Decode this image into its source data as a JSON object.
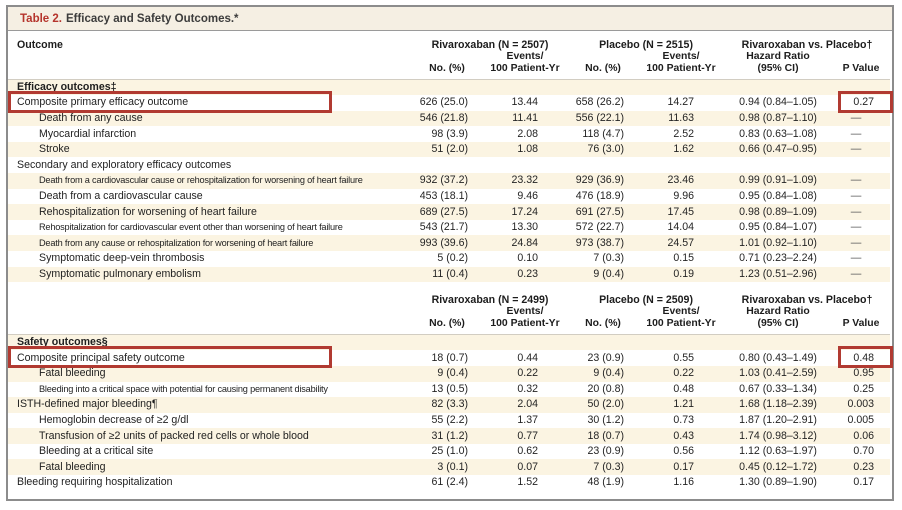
{
  "title": {
    "label": "Table 2.",
    "text": "Efficacy and Safety Outcomes.*"
  },
  "columns": {
    "outcome": "Outcome",
    "no_pct": "No. (%)",
    "events_line1": "Events/",
    "events_line2": "100 Patient-Yr",
    "hr_line1": "Hazard Ratio",
    "hr_line2": "(95% CI)",
    "p": "P Value"
  },
  "colors": {
    "accent_red": "#b13a31",
    "stripe_beige": "#fbf4e2",
    "title_bg": "#f5efe3"
  },
  "annotation_boxes": [
    "Composite primary efficacy outcome",
    "0.27",
    "Composite principal safety outcome",
    "0.48"
  ],
  "sections": [
    {
      "groups": [
        "Rivaroxaban (N = 2507)",
        "Placebo (N = 2515)",
        "Rivaroxaban vs. Placebo†"
      ],
      "rows": [
        {
          "label": "Efficacy outcomes‡",
          "type": "section",
          "bold": true
        },
        {
          "label": "Composite primary efficacy outcome",
          "boxLabel": true,
          "boxP": true,
          "cells": [
            "626 (25.0)",
            "13.44",
            "658 (26.2)",
            "14.27",
            "0.94 (0.84–1.05)",
            "0.27"
          ]
        },
        {
          "label": "Death from any cause",
          "indent": true,
          "cells": [
            "546 (21.8)",
            "11.41",
            "556 (22.1)",
            "11.63",
            "0.98 (0.87–1.10)",
            "—"
          ]
        },
        {
          "label": "Myocardial infarction",
          "indent": true,
          "cells": [
            "98 (3.9)",
            "2.08",
            "118 (4.7)",
            "2.52",
            "0.83 (0.63–1.08)",
            "—"
          ]
        },
        {
          "label": "Stroke",
          "indent": true,
          "cells": [
            "51 (2.0)",
            "1.08",
            "76 (3.0)",
            "1.62",
            "0.66 (0.47–0.95)",
            "—"
          ]
        },
        {
          "label": "Secondary and exploratory efficacy outcomes",
          "type": "section"
        },
        {
          "label": "Death from a cardiovascular cause or rehospitalization for worsening of heart failure",
          "indent": true,
          "fit": true,
          "cells": [
            "932 (37.2)",
            "23.32",
            "929 (36.9)",
            "23.46",
            "0.99 (0.91–1.09)",
            "—"
          ]
        },
        {
          "label": "Death from a cardiovascular cause",
          "indent": true,
          "cells": [
            "453 (18.1)",
            "9.46",
            "476 (18.9)",
            "9.96",
            "0.95 (0.84–1.08)",
            "—"
          ]
        },
        {
          "label": "Rehospitalization for worsening of heart failure",
          "indent": true,
          "cells": [
            "689 (27.5)",
            "17.24",
            "691 (27.5)",
            "17.45",
            "0.98 (0.89–1.09)",
            "—"
          ]
        },
        {
          "label": "Rehospitalization for cardiovascular event other than worsening of heart failure",
          "indent": true,
          "fit": true,
          "cells": [
            "543 (21.7)",
            "13.30",
            "572 (22.7)",
            "14.04",
            "0.95 (0.84–1.07)",
            "—"
          ]
        },
        {
          "label": "Death from any cause or rehospitalization for worsening of heart failure",
          "indent": true,
          "fit": true,
          "cells": [
            "993 (39.6)",
            "24.84",
            "973 (38.7)",
            "24.57",
            "1.01 (0.92–1.10)",
            "—"
          ]
        },
        {
          "label": "Symptomatic deep-vein thrombosis",
          "indent": true,
          "cells": [
            "5 (0.2)",
            "0.10",
            "7 (0.3)",
            "0.15",
            "0.71 (0.23–2.24)",
            "—"
          ]
        },
        {
          "label": "Symptomatic pulmonary embolism",
          "indent": true,
          "cells": [
            "11 (0.4)",
            "0.23",
            "9 (0.4)",
            "0.19",
            "1.23 (0.51–2.96)",
            "—"
          ]
        }
      ]
    },
    {
      "groups": [
        "Rivaroxaban (N = 2499)",
        "Placebo (N = 2509)",
        "Rivaroxaban vs. Placebo†"
      ],
      "rows": [
        {
          "label": "Safety outcomes§",
          "type": "section",
          "bold": true
        },
        {
          "label": "Composite principal safety outcome",
          "boxLabel": true,
          "boxP": true,
          "cells": [
            "18 (0.7)",
            "0.44",
            "23 (0.9)",
            "0.55",
            "0.80 (0.43–1.49)",
            "0.48"
          ]
        },
        {
          "label": "Fatal bleeding",
          "indent": true,
          "cells": [
            "9 (0.4)",
            "0.22",
            "9 (0.4)",
            "0.22",
            "1.03 (0.41–2.59)",
            "0.95"
          ]
        },
        {
          "label": "Bleeding into a critical space with potential for causing permanent disability",
          "indent": true,
          "fit": true,
          "cells": [
            "13 (0.5)",
            "0.32",
            "20 (0.8)",
            "0.48",
            "0.67 (0.33–1.34)",
            "0.25"
          ]
        },
        {
          "label": "ISTH-defined major bleeding¶",
          "cells": [
            "82 (3.3)",
            "2.04",
            "50 (2.0)",
            "1.21",
            "1.68 (1.18–2.39)",
            "0.003"
          ]
        },
        {
          "label": "Hemoglobin decrease of ≥2 g/dl",
          "indent": true,
          "cells": [
            "55 (2.2)",
            "1.37",
            "30 (1.2)",
            "0.73",
            "1.87 (1.20–2.91)",
            "0.005"
          ]
        },
        {
          "label": "Transfusion of ≥2 units of packed red cells or whole blood",
          "indent": true,
          "cells": [
            "31 (1.2)",
            "0.77",
            "18 (0.7)",
            "0.43",
            "1.74 (0.98–3.12)",
            "0.06"
          ]
        },
        {
          "label": "Bleeding at a critical site",
          "indent": true,
          "cells": [
            "25 (1.0)",
            "0.62",
            "23 (0.9)",
            "0.56",
            "1.12 (0.63–1.97)",
            "0.70"
          ]
        },
        {
          "label": "Fatal bleeding",
          "indent": true,
          "cells": [
            "3 (0.1)",
            "0.07",
            "7 (0.3)",
            "0.17",
            "0.45 (0.12–1.72)",
            "0.23"
          ]
        },
        {
          "label": "Bleeding requiring hospitalization",
          "cells": [
            "61 (2.4)",
            "1.52",
            "48 (1.9)",
            "1.16",
            "1.30 (0.89–1.90)",
            "0.17"
          ]
        }
      ]
    }
  ]
}
